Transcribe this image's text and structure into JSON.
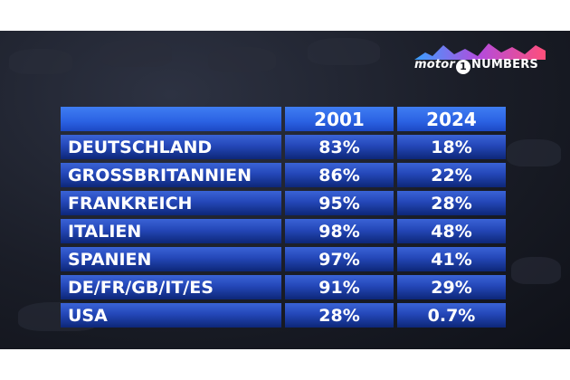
{
  "logo": {
    "part1": "motor",
    "part2": "1",
    "part3": "NUMBERS"
  },
  "table": {
    "columns": [
      "",
      "2001",
      "2024"
    ],
    "rows": [
      {
        "country": "DEUTSCHLAND",
        "v2001": "83%",
        "v2024": "18%"
      },
      {
        "country": "GROSSBRITANNIEN",
        "v2001": "86%",
        "v2024": "22%"
      },
      {
        "country": "FRANKREICH",
        "v2001": "95%",
        "v2024": "28%"
      },
      {
        "country": "ITALIEN",
        "v2001": "98%",
        "v2024": "48%"
      },
      {
        "country": "SPANIEN",
        "v2001": "97%",
        "v2024": "41%"
      },
      {
        "country": "DE/FR/GB/IT/ES",
        "v2001": "91%",
        "v2024": "29%"
      },
      {
        "country": "USA",
        "v2001": "28%",
        "v2024": "0.7%"
      }
    ]
  }
}
